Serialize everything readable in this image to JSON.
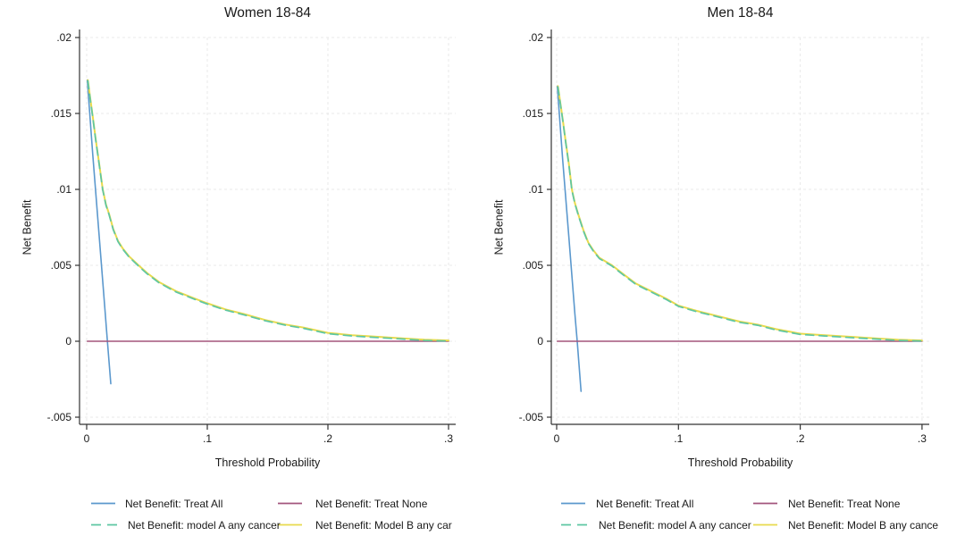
{
  "page": {
    "background": "#ffffff",
    "text_color": "#1a1a1a",
    "grid_color": "#e9e9e9",
    "axis_color": "#333333"
  },
  "chart_data": [
    {
      "type": "line",
      "title": "Women 18-84",
      "xlabel": "Threshold Probability",
      "ylabel": "Net Benefit",
      "xlim": [
        0,
        0.3
      ],
      "ylim": [
        -0.005,
        0.02
      ],
      "grid": true,
      "legend_position": "bottom, 2 columns x 2 rows",
      "xticks": {
        "values": [
          0,
          0.1,
          0.2,
          0.3
        ],
        "labels": [
          "0",
          ".1",
          ".2",
          ".3"
        ]
      },
      "yticks": {
        "values": [
          0.02,
          0.015,
          0.01,
          0.005,
          0,
          -0.005
        ],
        "labels": [
          ".02",
          ".015",
          ".01",
          ".005",
          "0",
          "-.005"
        ]
      },
      "series": [
        {
          "name": "Net Benefit: Treat All",
          "color": "#5b98cd",
          "dash": "solid",
          "width": 1.6,
          "points": [
            [
              0.0005,
              0.0172
            ],
            [
              0.005,
              0.0123
            ],
            [
              0.01,
              0.0073
            ],
            [
              0.015,
              0.0022
            ],
            [
              0.0172,
              0
            ],
            [
              0.02,
              -0.0028
            ]
          ]
        },
        {
          "name": "Net Benefit: Treat None",
          "color": "#a3557c",
          "dash": "solid",
          "width": 1.5,
          "points": [
            [
              0.0005,
              0
            ],
            [
              0.3,
              0
            ]
          ]
        },
        {
          "name": "Net Benefit: Model B any cancer",
          "color": "#e8da4d",
          "dash": "solid",
          "width": 2,
          "points": [
            [
              0.001,
              0.0172
            ],
            [
              0.003,
              0.016
            ],
            [
              0.005,
              0.0148
            ],
            [
              0.0075,
              0.0133
            ],
            [
              0.01,
              0.0119
            ],
            [
              0.0133,
              0.01
            ],
            [
              0.016,
              0.009
            ],
            [
              0.0185,
              0.0084
            ],
            [
              0.022,
              0.0074
            ],
            [
              0.026,
              0.0066
            ],
            [
              0.03,
              0.0061
            ],
            [
              0.035,
              0.0056
            ],
            [
              0.043,
              0.005
            ],
            [
              0.05,
              0.0045
            ],
            [
              0.06,
              0.0039
            ],
            [
              0.074,
              0.0033
            ],
            [
              0.09,
              0.0028
            ],
            [
              0.1,
              0.0025
            ],
            [
              0.115,
              0.0021
            ],
            [
              0.13,
              0.0018
            ],
            [
              0.148,
              0.0014
            ],
            [
              0.165,
              0.0011
            ],
            [
              0.18,
              0.0009
            ],
            [
              0.2,
              0.00055
            ],
            [
              0.22,
              0.0004
            ],
            [
              0.24,
              0.0003
            ],
            [
              0.26,
              0.0002
            ],
            [
              0.28,
              0.0001
            ],
            [
              0.3,
              5e-05
            ]
          ]
        },
        {
          "name": "Net Benefit: model A any cancer",
          "color": "#5dc6a2",
          "dash": "dashed",
          "width": 1.7,
          "points": [
            [
              0.001,
              0.01715
            ],
            [
              0.003,
              0.01595
            ],
            [
              0.005,
              0.01475
            ],
            [
              0.0075,
              0.01325
            ],
            [
              0.01,
              0.01185
            ],
            [
              0.0133,
              0.00995
            ],
            [
              0.016,
              0.00895
            ],
            [
              0.0185,
              0.00835
            ],
            [
              0.022,
              0.00735
            ],
            [
              0.026,
              0.00655
            ],
            [
              0.03,
              0.00605
            ],
            [
              0.035,
              0.00555
            ],
            [
              0.043,
              0.00495
            ],
            [
              0.05,
              0.00445
            ],
            [
              0.06,
              0.00385
            ],
            [
              0.074,
              0.00325
            ],
            [
              0.09,
              0.00275
            ],
            [
              0.1,
              0.00245
            ],
            [
              0.115,
              0.00205
            ],
            [
              0.13,
              0.00175
            ],
            [
              0.148,
              0.00135
            ],
            [
              0.165,
              0.00105
            ],
            [
              0.18,
              0.00085
            ],
            [
              0.2,
              0.0005
            ],
            [
              0.22,
              0.00035
            ],
            [
              0.24,
              0.00025
            ],
            [
              0.26,
              0.00015
            ],
            [
              0.28,
              5e-05
            ],
            [
              0.3,
              1e-05
            ]
          ]
        }
      ],
      "legend": [
        {
          "label": "Net Benefit: Treat All",
          "series": 0
        },
        {
          "label": "Net Benefit: Treat None",
          "series": 1
        },
        {
          "label": "Net Benefit: model A any cancer",
          "series": 3
        },
        {
          "label": "Net Benefit: Model B any car",
          "series": 2
        }
      ]
    },
    {
      "type": "line",
      "title": "Men 18-84",
      "xlabel": "Threshold Probability",
      "ylabel": "Net Benefit",
      "xlim": [
        0,
        0.3
      ],
      "ylim": [
        -0.005,
        0.02
      ],
      "grid": true,
      "legend_position": "bottom, 2 columns x 2 rows",
      "xticks": {
        "values": [
          0,
          0.1,
          0.2,
          0.3
        ],
        "labels": [
          "0",
          ".1",
          ".2",
          ".3"
        ]
      },
      "yticks": {
        "values": [
          0.02,
          0.015,
          0.01,
          0.005,
          0,
          -0.005
        ],
        "labels": [
          ".02",
          ".015",
          ".01",
          ".005",
          "0",
          "-.005"
        ]
      },
      "series": [
        {
          "name": "Net Benefit: Treat All",
          "color": "#5b98cd",
          "dash": "solid",
          "width": 1.6,
          "points": [
            [
              0.0005,
              0.0168
            ],
            [
              0.005,
              0.0119
            ],
            [
              0.01,
              0.0069
            ],
            [
              0.015,
              0.0018
            ],
            [
              0.0169,
              0
            ],
            [
              0.02,
              -0.0033
            ]
          ]
        },
        {
          "name": "Net Benefit: Treat None",
          "color": "#a3557c",
          "dash": "solid",
          "width": 1.5,
          "points": [
            [
              0.0005,
              0
            ],
            [
              0.3,
              0
            ]
          ]
        },
        {
          "name": "Net Benefit: Model B any cancer",
          "color": "#e8da4d",
          "dash": "solid",
          "width": 2,
          "points": [
            [
              0.001,
              0.0168
            ],
            [
              0.003,
              0.0157
            ],
            [
              0.005,
              0.0146
            ],
            [
              0.0075,
              0.0131
            ],
            [
              0.01,
              0.0117
            ],
            [
              0.0125,
              0.01
            ],
            [
              0.015,
              0.0091
            ],
            [
              0.018,
              0.0083
            ],
            [
              0.022,
              0.0073
            ],
            [
              0.026,
              0.0065
            ],
            [
              0.03,
              0.006
            ],
            [
              0.035,
              0.0055
            ],
            [
              0.0455,
              0.005
            ],
            [
              0.055,
              0.0044
            ],
            [
              0.065,
              0.0038
            ],
            [
              0.075,
              0.0034
            ],
            [
              0.09,
              0.0028
            ],
            [
              0.1,
              0.00235
            ],
            [
              0.115,
              0.002
            ],
            [
              0.13,
              0.0017
            ],
            [
              0.15,
              0.0013
            ],
            [
              0.165,
              0.0011
            ],
            [
              0.18,
              0.0008
            ],
            [
              0.2,
              0.0005
            ],
            [
              0.22,
              0.0004
            ],
            [
              0.24,
              0.0003
            ],
            [
              0.26,
              0.0002
            ],
            [
              0.28,
              0.0001
            ],
            [
              0.3,
              5e-05
            ]
          ]
        },
        {
          "name": "Net Benefit: model A any cancer",
          "color": "#5dc6a2",
          "dash": "dashed",
          "width": 1.7,
          "points": [
            [
              0.001,
              0.01675
            ],
            [
              0.003,
              0.01565
            ],
            [
              0.005,
              0.01455
            ],
            [
              0.0075,
              0.01305
            ],
            [
              0.01,
              0.01165
            ],
            [
              0.0125,
              0.00995
            ],
            [
              0.015,
              0.00905
            ],
            [
              0.018,
              0.00825
            ],
            [
              0.022,
              0.00725
            ],
            [
              0.026,
              0.00645
            ],
            [
              0.03,
              0.00595
            ],
            [
              0.035,
              0.00545
            ],
            [
              0.0455,
              0.00495
            ],
            [
              0.055,
              0.00435
            ],
            [
              0.065,
              0.00375
            ],
            [
              0.075,
              0.00335
            ],
            [
              0.09,
              0.00275
            ],
            [
              0.1,
              0.0023
            ],
            [
              0.115,
              0.00195
            ],
            [
              0.13,
              0.00165
            ],
            [
              0.15,
              0.00125
            ],
            [
              0.165,
              0.00105
            ],
            [
              0.18,
              0.00075
            ],
            [
              0.2,
              0.00045
            ],
            [
              0.22,
              0.00035
            ],
            [
              0.24,
              0.00025
            ],
            [
              0.26,
              0.00015
            ],
            [
              0.28,
              5e-05
            ],
            [
              0.3,
              1e-05
            ]
          ]
        }
      ],
      "legend": [
        {
          "label": "Net Benefit: Treat All",
          "series": 0
        },
        {
          "label": "Net Benefit: Treat None",
          "series": 1
        },
        {
          "label": "Net Benefit: model A any cancer",
          "series": 3
        },
        {
          "label": "Net Benefit: Model B any cance",
          "series": 2
        }
      ]
    }
  ]
}
